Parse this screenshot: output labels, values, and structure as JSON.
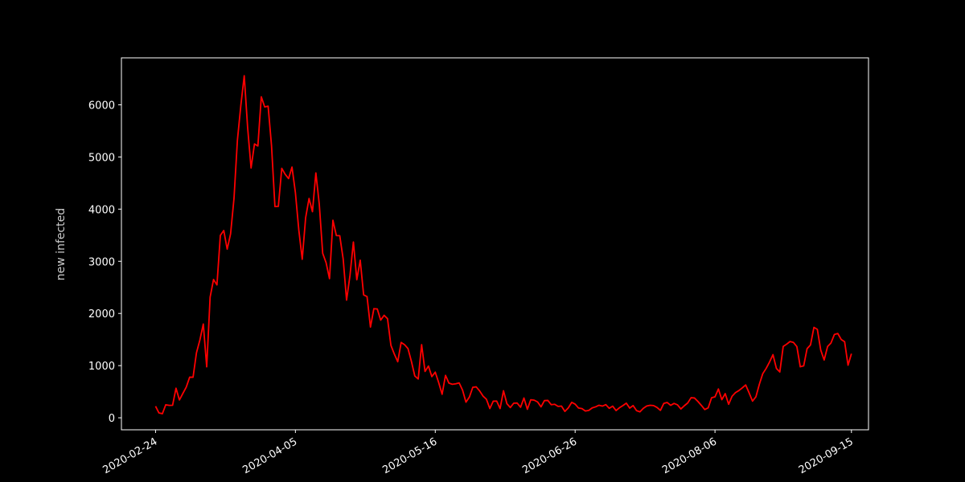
{
  "chart_data": {
    "type": "line",
    "title": "",
    "xlabel": "",
    "ylabel": "new infected",
    "xlim": [
      "2020-02-14",
      "2020-09-20"
    ],
    "ylim": [
      -230,
      6900
    ],
    "x_ticks": [
      "2020-02-24",
      "2020-04-05",
      "2020-05-16",
      "2020-06-26",
      "2020-08-06",
      "2020-09-15"
    ],
    "y_ticks": [
      0,
      1000,
      2000,
      3000,
      4000,
      5000,
      6000
    ],
    "grid": false,
    "legend": "none",
    "colors": {
      "background": "#000000",
      "axes": "#ffffff",
      "line": "#ff0000"
    },
    "series": [
      {
        "start_date": "2020-02-24",
        "values": [
          221,
          93,
          78,
          250,
          238,
          240,
          566,
          342,
          466,
          587,
          778,
          778,
          1247,
          1492,
          1797,
          977,
          2313,
          2651,
          2547,
          3497,
          3590,
          3233,
          3526,
          4207,
          5322,
          5986,
          6557,
          5560,
          4789,
          5249,
          5210,
          6153,
          5959,
          5974,
          5217,
          4050,
          4053,
          4782,
          4668,
          4585,
          4805,
          4316,
          3599,
          3039,
          3836,
          4204,
          3951,
          4694,
          4092,
          3153,
          2972,
          2667,
          3786,
          3493,
          3491,
          3047,
          2256,
          2729,
          3370,
          2646,
          3021,
          2357,
          2324,
          1739,
          2091,
          2086,
          1872,
          1965,
          1900,
          1389,
          1221,
          1075,
          1444,
          1401,
          1327,
          1083,
          802,
          744,
          1402,
          888,
          992,
          789,
          875,
          675,
          451,
          813,
          665,
          642,
          652,
          669,
          531,
          300,
          397,
          584,
          593,
          516,
          416,
          355,
          178,
          318,
          321,
          177,
          518,
          270,
          197,
          280,
          283,
          202,
          379,
          163,
          346,
          338,
          303,
          210,
          329,
          333,
          251,
          259,
          218,
          224,
          122,
          190,
          296,
          262,
          187,
          176,
          130,
          142,
          190,
          210,
          240,
          224,
          252,
          182,
          223,
          138,
          193,
          234,
          280,
          186,
          234,
          138,
          114,
          182,
          226,
          240,
          234,
          198,
          142,
          276,
          293,
          239,
          275,
          249,
          170,
          230,
          284,
          385,
          379,
          313,
          238,
          158,
          190,
          384,
          402,
          552,
          347,
          463,
          259,
          412,
          482,
          522,
          574,
          629,
          479,
          320,
          403,
          642,
          845,
          947,
          1071,
          1210,
          947,
          878,
          1367,
          1411,
          1462,
          1444,
          1365,
          978,
          996,
          1326,
          1397,
          1733,
          1695,
          1297,
          1108,
          1365,
          1434,
          1597,
          1616,
          1501,
          1458,
          1008,
          1229
        ]
      }
    ]
  }
}
